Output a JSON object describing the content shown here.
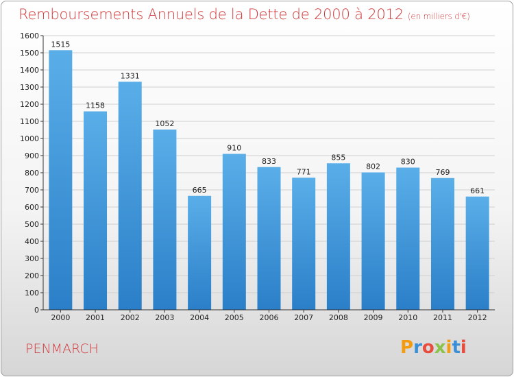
{
  "header": {
    "title": "Remboursements Annuels de la Dette de 2000 à 2012",
    "unit": "(en milliers d'€)"
  },
  "footer": {
    "commune": "PENMARCH",
    "logo_letters": [
      "P",
      "r",
      "o",
      "x",
      "i",
      "t",
      "i"
    ]
  },
  "colors": {
    "accent": "#d0383a",
    "bar_top": "#5aaee8",
    "bar_bottom": "#2a7fc8"
  },
  "chart_data": {
    "type": "bar",
    "title": "Remboursements Annuels de la Dette de 2000 à 2012",
    "subtitle": "(en milliers d'€)",
    "xlabel": "",
    "ylabel": "",
    "categories": [
      "2000",
      "2001",
      "2002",
      "2003",
      "2004",
      "2005",
      "2006",
      "2007",
      "2008",
      "2009",
      "2010",
      "2011",
      "2012"
    ],
    "values": [
      1515,
      1158,
      1331,
      1052,
      665,
      910,
      833,
      771,
      855,
      802,
      830,
      769,
      661
    ],
    "value_labels": [
      "1515",
      "1158",
      "1331",
      "1052",
      "665",
      "910",
      "833",
      "771",
      "855",
      "802",
      "830",
      "769",
      "661"
    ],
    "ylim": [
      0,
      1600
    ],
    "yticks": [
      0,
      100,
      200,
      300,
      400,
      500,
      600,
      700,
      800,
      900,
      1000,
      1100,
      1200,
      1300,
      1400,
      1500,
      1600
    ],
    "grid": "horizontal",
    "legend": "none"
  }
}
